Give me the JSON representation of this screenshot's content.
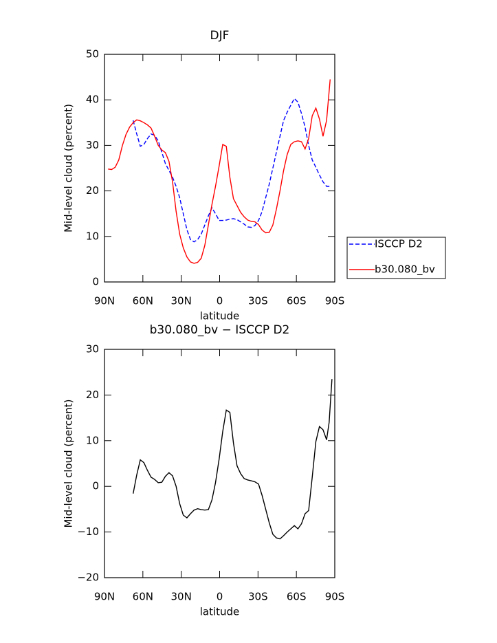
{
  "chart_data": [
    {
      "type": "line",
      "title": "DJF",
      "xlabel": "latitude",
      "ylabel": "Mid-level cloud (percent)",
      "xlim": [
        90,
        -90
      ],
      "xticks": [
        {
          "value": 90,
          "label": "90N"
        },
        {
          "value": 60,
          "label": "60N"
        },
        {
          "value": 30,
          "label": "30N"
        },
        0,
        {
          "value": -30,
          "label": "30S"
        },
        {
          "value": -60,
          "label": "60S"
        },
        {
          "value": -90,
          "label": "90S"
        }
      ],
      "ylim": [
        0,
        50
      ],
      "yticks": [
        0,
        10,
        20,
        30,
        40,
        50
      ],
      "legend": "right",
      "series": [
        {
          "name": "ISCCP D2",
          "color": "#0000ff",
          "style": "dashed",
          "x": [
            67.6,
            64.8,
            62.0,
            59.2,
            56.4,
            53.6,
            50.8,
            48.0,
            45.2,
            42.4,
            39.6,
            36.8,
            34.0,
            31.2,
            28.4,
            25.6,
            22.8,
            20.0,
            17.2,
            14.4,
            11.6,
            8.8,
            6.0,
            3.2,
            0.4,
            -2.4,
            -5.2,
            -8.0,
            -10.8,
            -13.6,
            -16.4,
            -19.2,
            -22.0,
            -24.8,
            -27.6,
            -30.4,
            -33.2,
            -36.0,
            -38.8,
            -41.6,
            -44.4,
            -47.2,
            -50.0,
            -52.8,
            -55.6,
            -58.4,
            -61.2,
            -64.0,
            -66.8,
            -69.6,
            -72.4,
            -75.2,
            -78.0,
            -80.8,
            -83.6,
            -86.4
          ],
          "values": [
            35.5,
            32.5,
            29.8,
            30.2,
            31.5,
            32.5,
            32.2,
            31.0,
            28.5,
            26.0,
            24.5,
            23.0,
            21.0,
            18.5,
            15.0,
            11.5,
            9.3,
            8.8,
            9.3,
            10.5,
            12.5,
            14.5,
            16.3,
            15.0,
            13.5,
            13.5,
            13.6,
            13.8,
            13.9,
            13.7,
            13.2,
            12.7,
            12.1,
            12.0,
            12.4,
            13.5,
            15.5,
            18.5,
            21.5,
            25.0,
            28.5,
            32.0,
            35.5,
            37.3,
            38.8,
            40.3,
            39.5,
            37.0,
            34.0,
            30.0,
            26.8,
            25.2,
            23.5,
            22.0,
            21.0,
            21.0
          ]
        },
        {
          "name": "b30.080_bv",
          "color": "#ff0000",
          "style": "solid",
          "x": [
            87.2,
            84.4,
            81.6,
            78.8,
            76.0,
            73.2,
            70.4,
            67.6,
            64.8,
            62.0,
            59.2,
            56.4,
            53.6,
            50.8,
            48.0,
            45.2,
            42.4,
            39.6,
            36.8,
            34.0,
            31.2,
            28.4,
            25.6,
            22.8,
            20.0,
            17.2,
            14.4,
            11.6,
            8.8,
            6.0,
            3.2,
            0.4,
            -2.4,
            -5.2,
            -8.0,
            -10.8,
            -13.6,
            -16.4,
            -19.2,
            -22.0,
            -24.8,
            -27.6,
            -30.4,
            -33.2,
            -36.0,
            -38.8,
            -41.6,
            -44.4,
            -47.2,
            -50.0,
            -52.8,
            -55.6,
            -58.4,
            -61.2,
            -64.0,
            -66.8,
            -69.6,
            -72.4,
            -75.2,
            -78.0,
            -80.8,
            -83.6,
            -86.4
          ],
          "values": [
            24.8,
            24.7,
            25.2,
            26.8,
            30.0,
            32.4,
            34.0,
            35.0,
            35.6,
            35.4,
            35.0,
            34.5,
            33.8,
            32.0,
            30.0,
            29.0,
            28.4,
            26.5,
            22.0,
            15.5,
            10.5,
            7.5,
            5.5,
            4.4,
            4.1,
            4.3,
            5.2,
            8.0,
            12.5,
            17.0,
            21.0,
            25.5,
            30.2,
            29.8,
            23.0,
            18.3,
            16.8,
            15.3,
            14.3,
            13.6,
            13.3,
            13.2,
            12.6,
            11.4,
            10.8,
            10.9,
            12.5,
            16.0,
            20.0,
            24.5,
            28.0,
            30.2,
            30.8,
            31.0,
            30.8,
            29.2,
            31.5,
            36.5,
            38.2,
            35.8,
            32.0,
            35.5,
            44.5
          ]
        }
      ]
    },
    {
      "type": "line",
      "title": "b30.080_bv − ISCCP D2",
      "xlabel": "latitude",
      "ylabel": "Mid-level cloud (percent)",
      "xlim": [
        90,
        -90
      ],
      "xticks": [
        {
          "value": 90,
          "label": "90N"
        },
        {
          "value": 60,
          "label": "60N"
        },
        {
          "value": 30,
          "label": "30N"
        },
        0,
        {
          "value": -30,
          "label": "30S"
        },
        {
          "value": -60,
          "label": "60S"
        },
        {
          "value": -90,
          "label": "90S"
        }
      ],
      "ylim": [
        -20,
        30
      ],
      "yticks": [
        {
          "value": -20,
          "label": "−20"
        },
        {
          "value": -10,
          "label": "−10"
        },
        0,
        10,
        20,
        30
      ],
      "series": [
        {
          "color": "#000000",
          "style": "solid",
          "x": [
            67.6,
            64.8,
            62.0,
            59.2,
            56.4,
            53.6,
            50.8,
            48.0,
            45.2,
            42.4,
            39.6,
            36.8,
            34.0,
            31.2,
            28.4,
            25.6,
            22.8,
            20.0,
            17.2,
            14.4,
            11.6,
            8.8,
            6.0,
            3.2,
            0.4,
            -2.4,
            -5.2,
            -8.0,
            -10.8,
            -13.6,
            -16.4,
            -19.2,
            -22.0,
            -24.8,
            -27.6,
            -30.4,
            -33.2,
            -36.0,
            -38.8,
            -41.6,
            -44.4,
            -47.2,
            -50.0,
            -52.8,
            -55.6,
            -58.4,
            -61.2,
            -64.0,
            -66.8,
            -69.6,
            -72.4,
            -75.2,
            -78.0,
            -80.8,
            -83.6,
            -85.6,
            -87.8
          ],
          "values": [
            -1.6,
            2.5,
            5.8,
            5.2,
            3.5,
            2.0,
            1.5,
            0.8,
            0.9,
            2.2,
            3.0,
            2.3,
            0.0,
            -3.8,
            -6.3,
            -6.9,
            -6.0,
            -5.2,
            -4.9,
            -5.1,
            -5.2,
            -5.1,
            -3.0,
            0.8,
            6.0,
            12.0,
            16.7,
            16.2,
            9.5,
            4.5,
            2.8,
            1.7,
            1.4,
            1.2,
            1.0,
            0.5,
            -2.0,
            -5.0,
            -8.0,
            -10.5,
            -11.3,
            -11.5,
            -10.8,
            -10.0,
            -9.3,
            -8.6,
            -9.3,
            -8.2,
            -6.0,
            -5.3,
            2.0,
            9.8,
            13.1,
            12.4,
            10.2,
            14.0,
            23.5
          ]
        }
      ]
    }
  ]
}
